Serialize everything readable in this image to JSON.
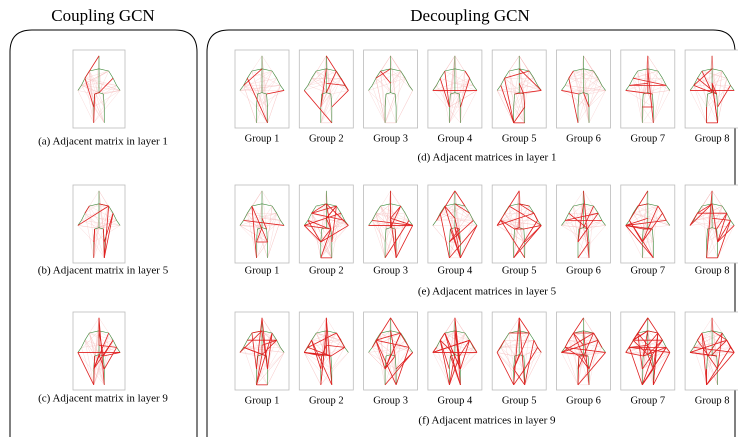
{
  "coupling": {
    "title": "Coupling GCN",
    "captions": [
      "(a) Adjacent matrix in layer 1",
      "(b) Adjacent matrix in layer 5",
      "(c) Adjacent matrix in layer 9"
    ]
  },
  "decoupling": {
    "title": "Decoupling GCN",
    "rows": [
      {
        "groups": [
          "Group 1",
          "Group 2",
          "Group 3",
          "Group 4",
          "Group 5",
          "Group 6",
          "Group 7",
          "Group 8"
        ],
        "caption": "(d) Adjacent matrices in layer 1"
      },
      {
        "groups": [
          "Group 1",
          "Group 2",
          "Group 3",
          "Group 4",
          "Group 5",
          "Group 6",
          "Group 7",
          "Group 8"
        ],
        "caption": "(e) Adjacent matrices in layer 5"
      },
      {
        "groups": [
          "Group 1",
          "Group 2",
          "Group 3",
          "Group 4",
          "Group 5",
          "Group 6",
          "Group 7",
          "Group 8"
        ],
        "caption": "(f) Adjacent matrices in layer 9"
      }
    ]
  }
}
